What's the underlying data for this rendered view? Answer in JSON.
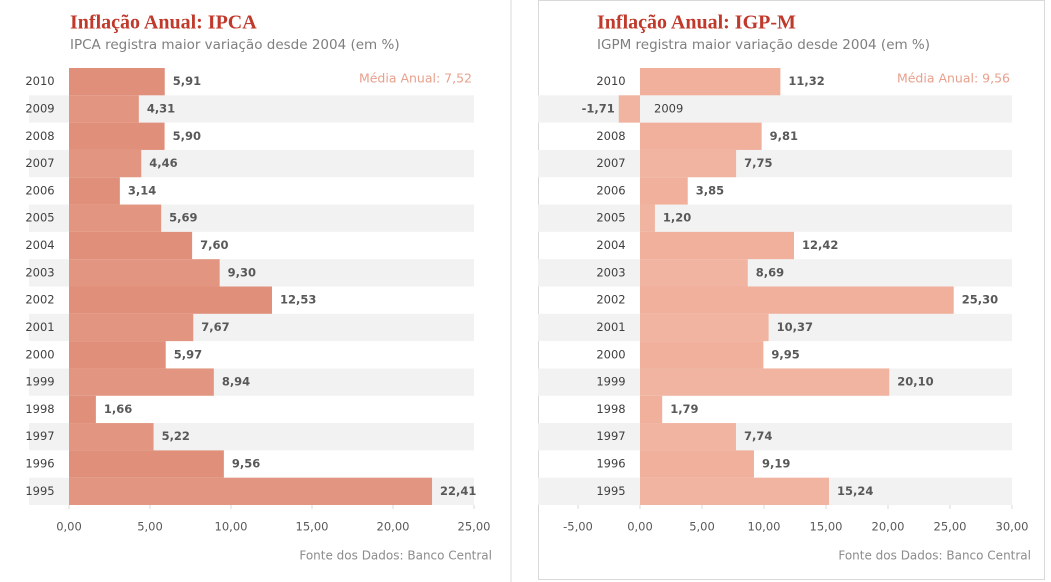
{
  "chart_data": [
    {
      "type": "bar",
      "orientation": "horizontal",
      "title": "Inflação Anual: IPCA",
      "subtitle": "IPCA registra maior variação desde 2004 (em %)",
      "annotation": "Média Anual: 7,52",
      "source": "Fonte dos Dados: Banco Central",
      "color": "#e0907a",
      "band_color": "#f2f2f2",
      "annotation_color": "#e8a08c",
      "categories": [
        "2010",
        "2009",
        "2008",
        "2007",
        "2006",
        "2005",
        "2004",
        "2003",
        "2002",
        "2001",
        "2000",
        "1999",
        "1998",
        "1997",
        "1996",
        "1995"
      ],
      "values": [
        5.91,
        4.31,
        5.9,
        4.46,
        3.14,
        5.69,
        7.6,
        9.3,
        12.53,
        7.67,
        5.97,
        8.94,
        1.66,
        5.22,
        9.56,
        22.41
      ],
      "value_labels": [
        "5,91",
        "4,31",
        "5,90",
        "4,46",
        "3,14",
        "5,69",
        "7,60",
        "9,30",
        "12,53",
        "7,67",
        "5,97",
        "8,94",
        "1,66",
        "5,22",
        "9,56",
        "22,41"
      ],
      "xlim": [
        0,
        25
      ],
      "xticks": [
        {
          "value": 0,
          "label": "0,00"
        },
        {
          "value": 5,
          "label": "5,00"
        },
        {
          "value": 10,
          "label": "10,00"
        },
        {
          "value": 15,
          "label": "15,00"
        },
        {
          "value": 20,
          "label": "20,00"
        },
        {
          "value": 25,
          "label": "25,00"
        }
      ]
    },
    {
      "type": "bar",
      "orientation": "horizontal",
      "title": "Inflação Anual: IGP-M",
      "subtitle": "IGPM registra maior variação desde 2004 (em %)",
      "annotation": "Média Anual: 9,56",
      "source": "Fonte dos Dados: Banco Central",
      "color": "#f0b09c",
      "band_color": "#f2f2f2",
      "annotation_color": "#e8a08c",
      "categories": [
        "2010",
        "2009",
        "2008",
        "2007",
        "2006",
        "2005",
        "2004",
        "2003",
        "2002",
        "2001",
        "2000",
        "1999",
        "1998",
        "1997",
        "1996",
        "1995"
      ],
      "values": [
        11.32,
        -1.71,
        9.81,
        7.75,
        3.85,
        1.2,
        12.42,
        8.69,
        25.3,
        10.37,
        9.95,
        20.1,
        1.79,
        7.74,
        9.19,
        15.24
      ],
      "value_labels": [
        "11,32",
        "-1,71",
        "9,81",
        "7,75",
        "3,85",
        "1,20",
        "12,42",
        "8,69",
        "25,30",
        "10,37",
        "9,95",
        "20,10",
        "1,79",
        "7,74",
        "9,19",
        "15,24"
      ],
      "xlim": [
        -5,
        30
      ],
      "xticks": [
        {
          "value": -5,
          "label": "-5,00"
        },
        {
          "value": 0,
          "label": "0,00"
        },
        {
          "value": 5,
          "label": "5,00"
        },
        {
          "value": 10,
          "label": "10,00"
        },
        {
          "value": 15,
          "label": "15,00"
        },
        {
          "value": 20,
          "label": "20,00"
        },
        {
          "value": 25,
          "label": "25,00"
        },
        {
          "value": 30,
          "label": "30,00"
        }
      ]
    }
  ]
}
